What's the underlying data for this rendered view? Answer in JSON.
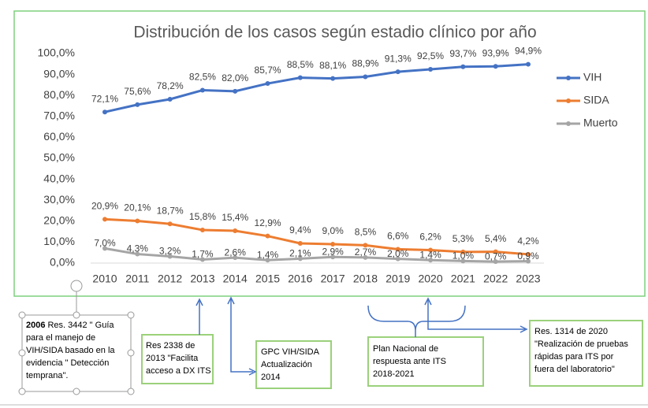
{
  "chart_data": {
    "type": "line",
    "title": "Distribución de los casos según estadio clínico por año",
    "x": [
      "2010",
      "2011",
      "2012",
      "2013",
      "2014",
      "2015",
      "2016",
      "2017",
      "2018",
      "2019",
      "2020",
      "2021",
      "2022",
      "2023"
    ],
    "series": [
      {
        "name": "VIH",
        "color": "#4472c4",
        "values": [
          72.1,
          75.6,
          78.2,
          82.5,
          82.0,
          85.7,
          88.5,
          88.1,
          88.9,
          91.3,
          92.5,
          93.7,
          93.9,
          94.9
        ],
        "value_labels": [
          "72,1%",
          "75,6%",
          "78,2%",
          "82,5%",
          "82,0%",
          "85,7%",
          "88,5%",
          "88,1%",
          "88,9%",
          "91,3%",
          "92,5%",
          "93,7%",
          "93,9%",
          "94,9%"
        ]
      },
      {
        "name": "SIDA",
        "color": "#ed7d31",
        "values": [
          20.9,
          20.1,
          18.7,
          15.8,
          15.4,
          12.9,
          9.4,
          9.0,
          8.5,
          6.6,
          6.2,
          5.3,
          5.4,
          4.2
        ],
        "value_labels": [
          "20,9%",
          "20,1%",
          "18,7%",
          "15,8%",
          "15,4%",
          "12,9%",
          "9,4%",
          "9,0%",
          "8,5%",
          "6,6%",
          "6,2%",
          "5,3%",
          "5,4%",
          "4,2%"
        ]
      },
      {
        "name": "Muerto",
        "color": "#a5a5a5",
        "values": [
          7.0,
          4.3,
          3.2,
          1.7,
          2.6,
          1.4,
          2.1,
          2.9,
          2.7,
          2.0,
          1.4,
          1.0,
          0.7,
          0.9
        ],
        "value_labels": [
          "7,0%",
          "4,3%",
          "3,2%",
          "1,7%",
          "2,6%",
          "1,4%",
          "2,1%",
          "2,9%",
          "2,7%",
          "2,0%",
          "1,4%",
          "1,0%",
          "0,7%",
          "0,9%"
        ]
      }
    ],
    "ylim": [
      0,
      100
    ],
    "yticks": [
      {
        "value": 0,
        "label": "0,0%"
      },
      {
        "value": 10,
        "label": "10,0%"
      },
      {
        "value": 20,
        "label": "20,0%"
      },
      {
        "value": 30,
        "label": "30,0%"
      },
      {
        "value": 40,
        "label": "40,0%"
      },
      {
        "value": 50,
        "label": "50,0%"
      },
      {
        "value": 60,
        "label": "60,0%"
      },
      {
        "value": 70,
        "label": "70,0%"
      },
      {
        "value": 80,
        "label": "80,0%"
      },
      {
        "value": 90,
        "label": "90,0%"
      },
      {
        "value": 100,
        "label": "100,0%"
      }
    ],
    "legend": "right",
    "annotations": [
      {
        "year": "2006",
        "lines": [
          "Res. 3442 \" Guía",
          "para el manejo de",
          "VIH/SIDA basado en la",
          "evidencia \" Detección",
          "temprana\"."
        ]
      },
      {
        "lines": [
          "Res 2338 de",
          "2013 \"Facilita",
          "acceso a DX ITS"
        ]
      },
      {
        "lines": [
          "GPC VIH/SIDA",
          "Actualización",
          "2014"
        ]
      },
      {
        "lines": [
          "Plan Nacional de",
          "respuesta ante ITS",
          "2018-2021"
        ]
      },
      {
        "lines": [
          "Res. 1314 de 2020",
          "\"Realización de pruebas",
          "rápidas para ITS por",
          "fuera del laboratorio\""
        ]
      }
    ]
  }
}
